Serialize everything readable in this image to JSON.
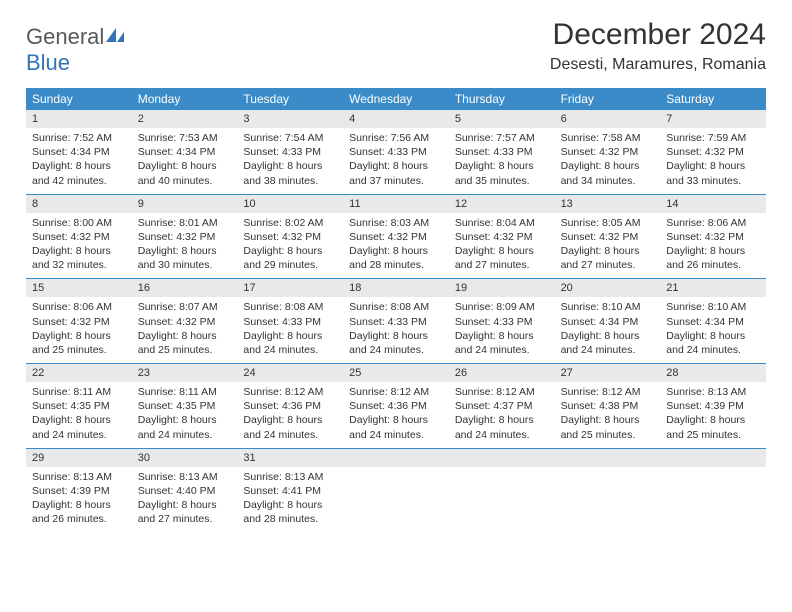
{
  "logo": {
    "word1": "General",
    "word2": "Blue"
  },
  "title": "December 2024",
  "location": "Desesti, Maramures, Romania",
  "theme": {
    "header_bg": "#3b8bc9",
    "header_text": "#ffffff",
    "daynum_bg": "#e8e9ea",
    "border": "#3b8bc9",
    "body_text": "#333333",
    "logo_gray": "#58595b",
    "logo_blue": "#2f74b5"
  },
  "day_names": [
    "Sunday",
    "Monday",
    "Tuesday",
    "Wednesday",
    "Thursday",
    "Friday",
    "Saturday"
  ],
  "weeks": [
    [
      {
        "n": "1",
        "sr": "Sunrise: 7:52 AM",
        "ss": "Sunset: 4:34 PM",
        "dl1": "Daylight: 8 hours",
        "dl2": "and 42 minutes."
      },
      {
        "n": "2",
        "sr": "Sunrise: 7:53 AM",
        "ss": "Sunset: 4:34 PM",
        "dl1": "Daylight: 8 hours",
        "dl2": "and 40 minutes."
      },
      {
        "n": "3",
        "sr": "Sunrise: 7:54 AM",
        "ss": "Sunset: 4:33 PM",
        "dl1": "Daylight: 8 hours",
        "dl2": "and 38 minutes."
      },
      {
        "n": "4",
        "sr": "Sunrise: 7:56 AM",
        "ss": "Sunset: 4:33 PM",
        "dl1": "Daylight: 8 hours",
        "dl2": "and 37 minutes."
      },
      {
        "n": "5",
        "sr": "Sunrise: 7:57 AM",
        "ss": "Sunset: 4:33 PM",
        "dl1": "Daylight: 8 hours",
        "dl2": "and 35 minutes."
      },
      {
        "n": "6",
        "sr": "Sunrise: 7:58 AM",
        "ss": "Sunset: 4:32 PM",
        "dl1": "Daylight: 8 hours",
        "dl2": "and 34 minutes."
      },
      {
        "n": "7",
        "sr": "Sunrise: 7:59 AM",
        "ss": "Sunset: 4:32 PM",
        "dl1": "Daylight: 8 hours",
        "dl2": "and 33 minutes."
      }
    ],
    [
      {
        "n": "8",
        "sr": "Sunrise: 8:00 AM",
        "ss": "Sunset: 4:32 PM",
        "dl1": "Daylight: 8 hours",
        "dl2": "and 32 minutes."
      },
      {
        "n": "9",
        "sr": "Sunrise: 8:01 AM",
        "ss": "Sunset: 4:32 PM",
        "dl1": "Daylight: 8 hours",
        "dl2": "and 30 minutes."
      },
      {
        "n": "10",
        "sr": "Sunrise: 8:02 AM",
        "ss": "Sunset: 4:32 PM",
        "dl1": "Daylight: 8 hours",
        "dl2": "and 29 minutes."
      },
      {
        "n": "11",
        "sr": "Sunrise: 8:03 AM",
        "ss": "Sunset: 4:32 PM",
        "dl1": "Daylight: 8 hours",
        "dl2": "and 28 minutes."
      },
      {
        "n": "12",
        "sr": "Sunrise: 8:04 AM",
        "ss": "Sunset: 4:32 PM",
        "dl1": "Daylight: 8 hours",
        "dl2": "and 27 minutes."
      },
      {
        "n": "13",
        "sr": "Sunrise: 8:05 AM",
        "ss": "Sunset: 4:32 PM",
        "dl1": "Daylight: 8 hours",
        "dl2": "and 27 minutes."
      },
      {
        "n": "14",
        "sr": "Sunrise: 8:06 AM",
        "ss": "Sunset: 4:32 PM",
        "dl1": "Daylight: 8 hours",
        "dl2": "and 26 minutes."
      }
    ],
    [
      {
        "n": "15",
        "sr": "Sunrise: 8:06 AM",
        "ss": "Sunset: 4:32 PM",
        "dl1": "Daylight: 8 hours",
        "dl2": "and 25 minutes."
      },
      {
        "n": "16",
        "sr": "Sunrise: 8:07 AM",
        "ss": "Sunset: 4:32 PM",
        "dl1": "Daylight: 8 hours",
        "dl2": "and 25 minutes."
      },
      {
        "n": "17",
        "sr": "Sunrise: 8:08 AM",
        "ss": "Sunset: 4:33 PM",
        "dl1": "Daylight: 8 hours",
        "dl2": "and 24 minutes."
      },
      {
        "n": "18",
        "sr": "Sunrise: 8:08 AM",
        "ss": "Sunset: 4:33 PM",
        "dl1": "Daylight: 8 hours",
        "dl2": "and 24 minutes."
      },
      {
        "n": "19",
        "sr": "Sunrise: 8:09 AM",
        "ss": "Sunset: 4:33 PM",
        "dl1": "Daylight: 8 hours",
        "dl2": "and 24 minutes."
      },
      {
        "n": "20",
        "sr": "Sunrise: 8:10 AM",
        "ss": "Sunset: 4:34 PM",
        "dl1": "Daylight: 8 hours",
        "dl2": "and 24 minutes."
      },
      {
        "n": "21",
        "sr": "Sunrise: 8:10 AM",
        "ss": "Sunset: 4:34 PM",
        "dl1": "Daylight: 8 hours",
        "dl2": "and 24 minutes."
      }
    ],
    [
      {
        "n": "22",
        "sr": "Sunrise: 8:11 AM",
        "ss": "Sunset: 4:35 PM",
        "dl1": "Daylight: 8 hours",
        "dl2": "and 24 minutes."
      },
      {
        "n": "23",
        "sr": "Sunrise: 8:11 AM",
        "ss": "Sunset: 4:35 PM",
        "dl1": "Daylight: 8 hours",
        "dl2": "and 24 minutes."
      },
      {
        "n": "24",
        "sr": "Sunrise: 8:12 AM",
        "ss": "Sunset: 4:36 PM",
        "dl1": "Daylight: 8 hours",
        "dl2": "and 24 minutes."
      },
      {
        "n": "25",
        "sr": "Sunrise: 8:12 AM",
        "ss": "Sunset: 4:36 PM",
        "dl1": "Daylight: 8 hours",
        "dl2": "and 24 minutes."
      },
      {
        "n": "26",
        "sr": "Sunrise: 8:12 AM",
        "ss": "Sunset: 4:37 PM",
        "dl1": "Daylight: 8 hours",
        "dl2": "and 24 minutes."
      },
      {
        "n": "27",
        "sr": "Sunrise: 8:12 AM",
        "ss": "Sunset: 4:38 PM",
        "dl1": "Daylight: 8 hours",
        "dl2": "and 25 minutes."
      },
      {
        "n": "28",
        "sr": "Sunrise: 8:13 AM",
        "ss": "Sunset: 4:39 PM",
        "dl1": "Daylight: 8 hours",
        "dl2": "and 25 minutes."
      }
    ],
    [
      {
        "n": "29",
        "sr": "Sunrise: 8:13 AM",
        "ss": "Sunset: 4:39 PM",
        "dl1": "Daylight: 8 hours",
        "dl2": "and 26 minutes."
      },
      {
        "n": "30",
        "sr": "Sunrise: 8:13 AM",
        "ss": "Sunset: 4:40 PM",
        "dl1": "Daylight: 8 hours",
        "dl2": "and 27 minutes."
      },
      {
        "n": "31",
        "sr": "Sunrise: 8:13 AM",
        "ss": "Sunset: 4:41 PM",
        "dl1": "Daylight: 8 hours",
        "dl2": "and 28 minutes."
      },
      null,
      null,
      null,
      null
    ]
  ]
}
